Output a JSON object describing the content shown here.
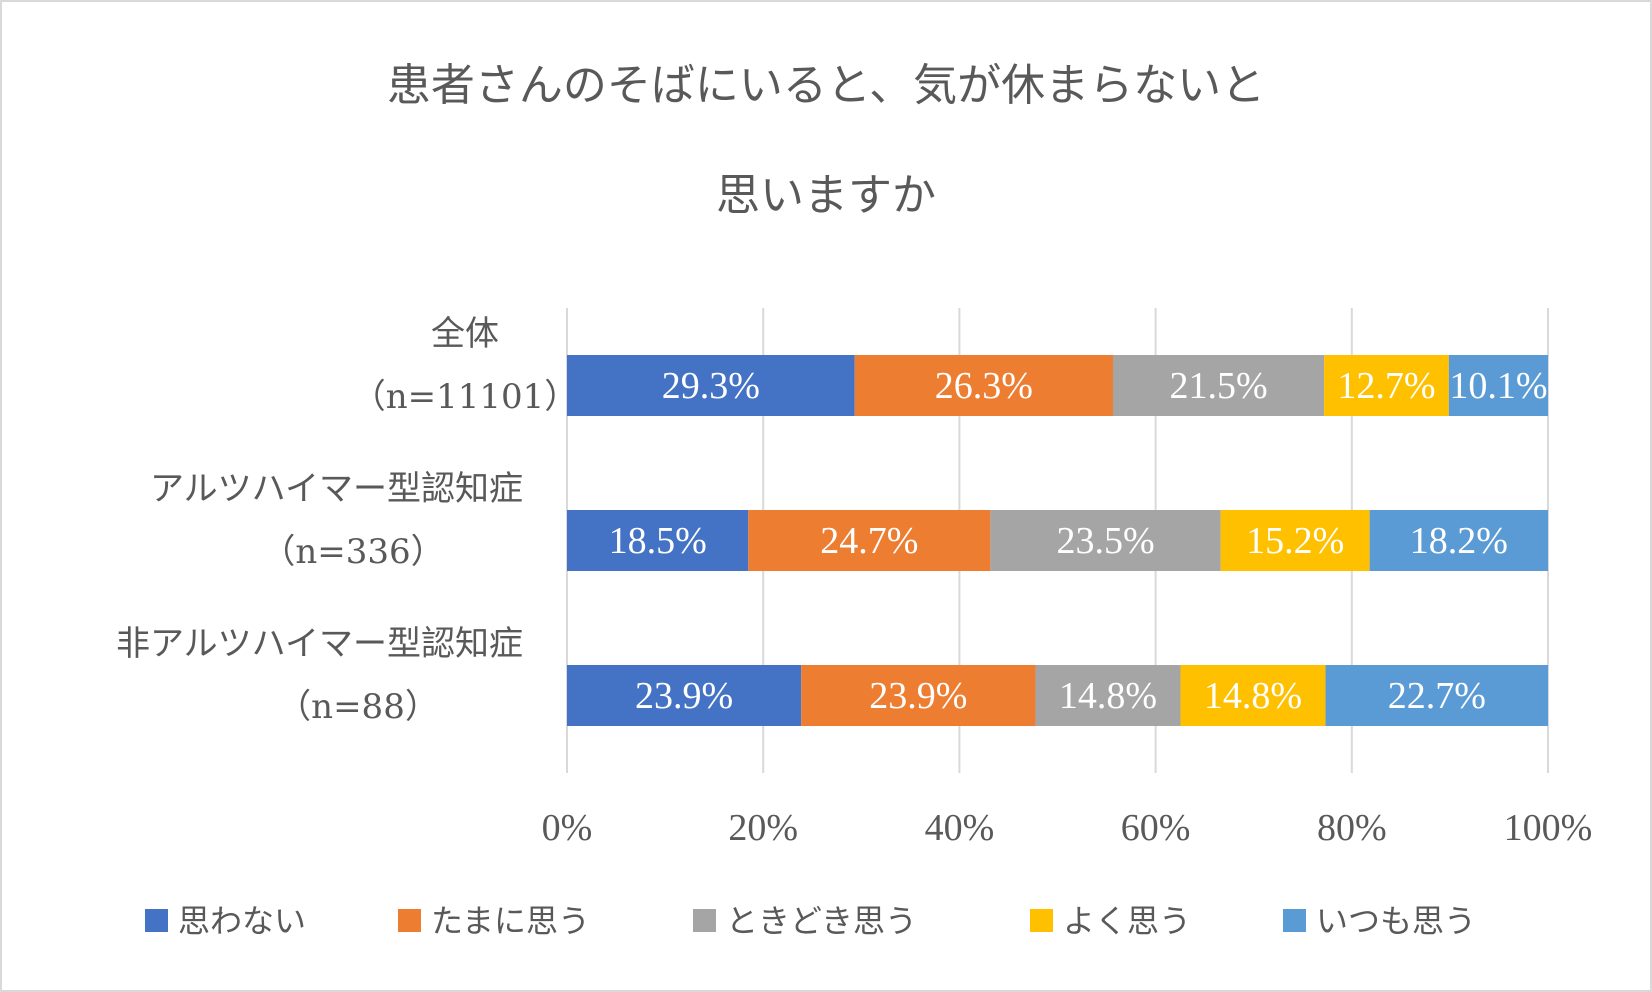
{
  "chart_data": {
    "type": "bar",
    "orientation": "horizontal",
    "stacked": "percent",
    "title_lines": [
      "患者さんのそばにいると、気が休まらないと",
      "思いますか"
    ],
    "categories": [
      {
        "name": "全体",
        "n": "（n=11101）"
      },
      {
        "name": "アルツハイマー型認知症",
        "n": "（n=336）"
      },
      {
        "name": "非アルツハイマー型認知症",
        "n": "（n=88）"
      }
    ],
    "series": [
      {
        "name": "思わない",
        "color": "#4472c4",
        "values": [
          29.3,
          18.5,
          23.9
        ]
      },
      {
        "name": "たまに思う",
        "color": "#ed7d31",
        "values": [
          26.3,
          24.7,
          23.9
        ]
      },
      {
        "name": "ときどき思う",
        "color": "#a5a5a5",
        "values": [
          21.5,
          23.5,
          14.8
        ]
      },
      {
        "name": "よく思う",
        "color": "#ffc000",
        "values": [
          12.7,
          15.2,
          14.8
        ]
      },
      {
        "name": "いつも思う",
        "color": "#5b9bd5",
        "values": [
          10.1,
          18.2,
          22.7
        ]
      }
    ],
    "xticks": [
      "0%",
      "20%",
      "40%",
      "60%",
      "80%",
      "100%"
    ],
    "xlim": [
      0,
      100
    ],
    "grid": true,
    "legend": "bottom"
  }
}
